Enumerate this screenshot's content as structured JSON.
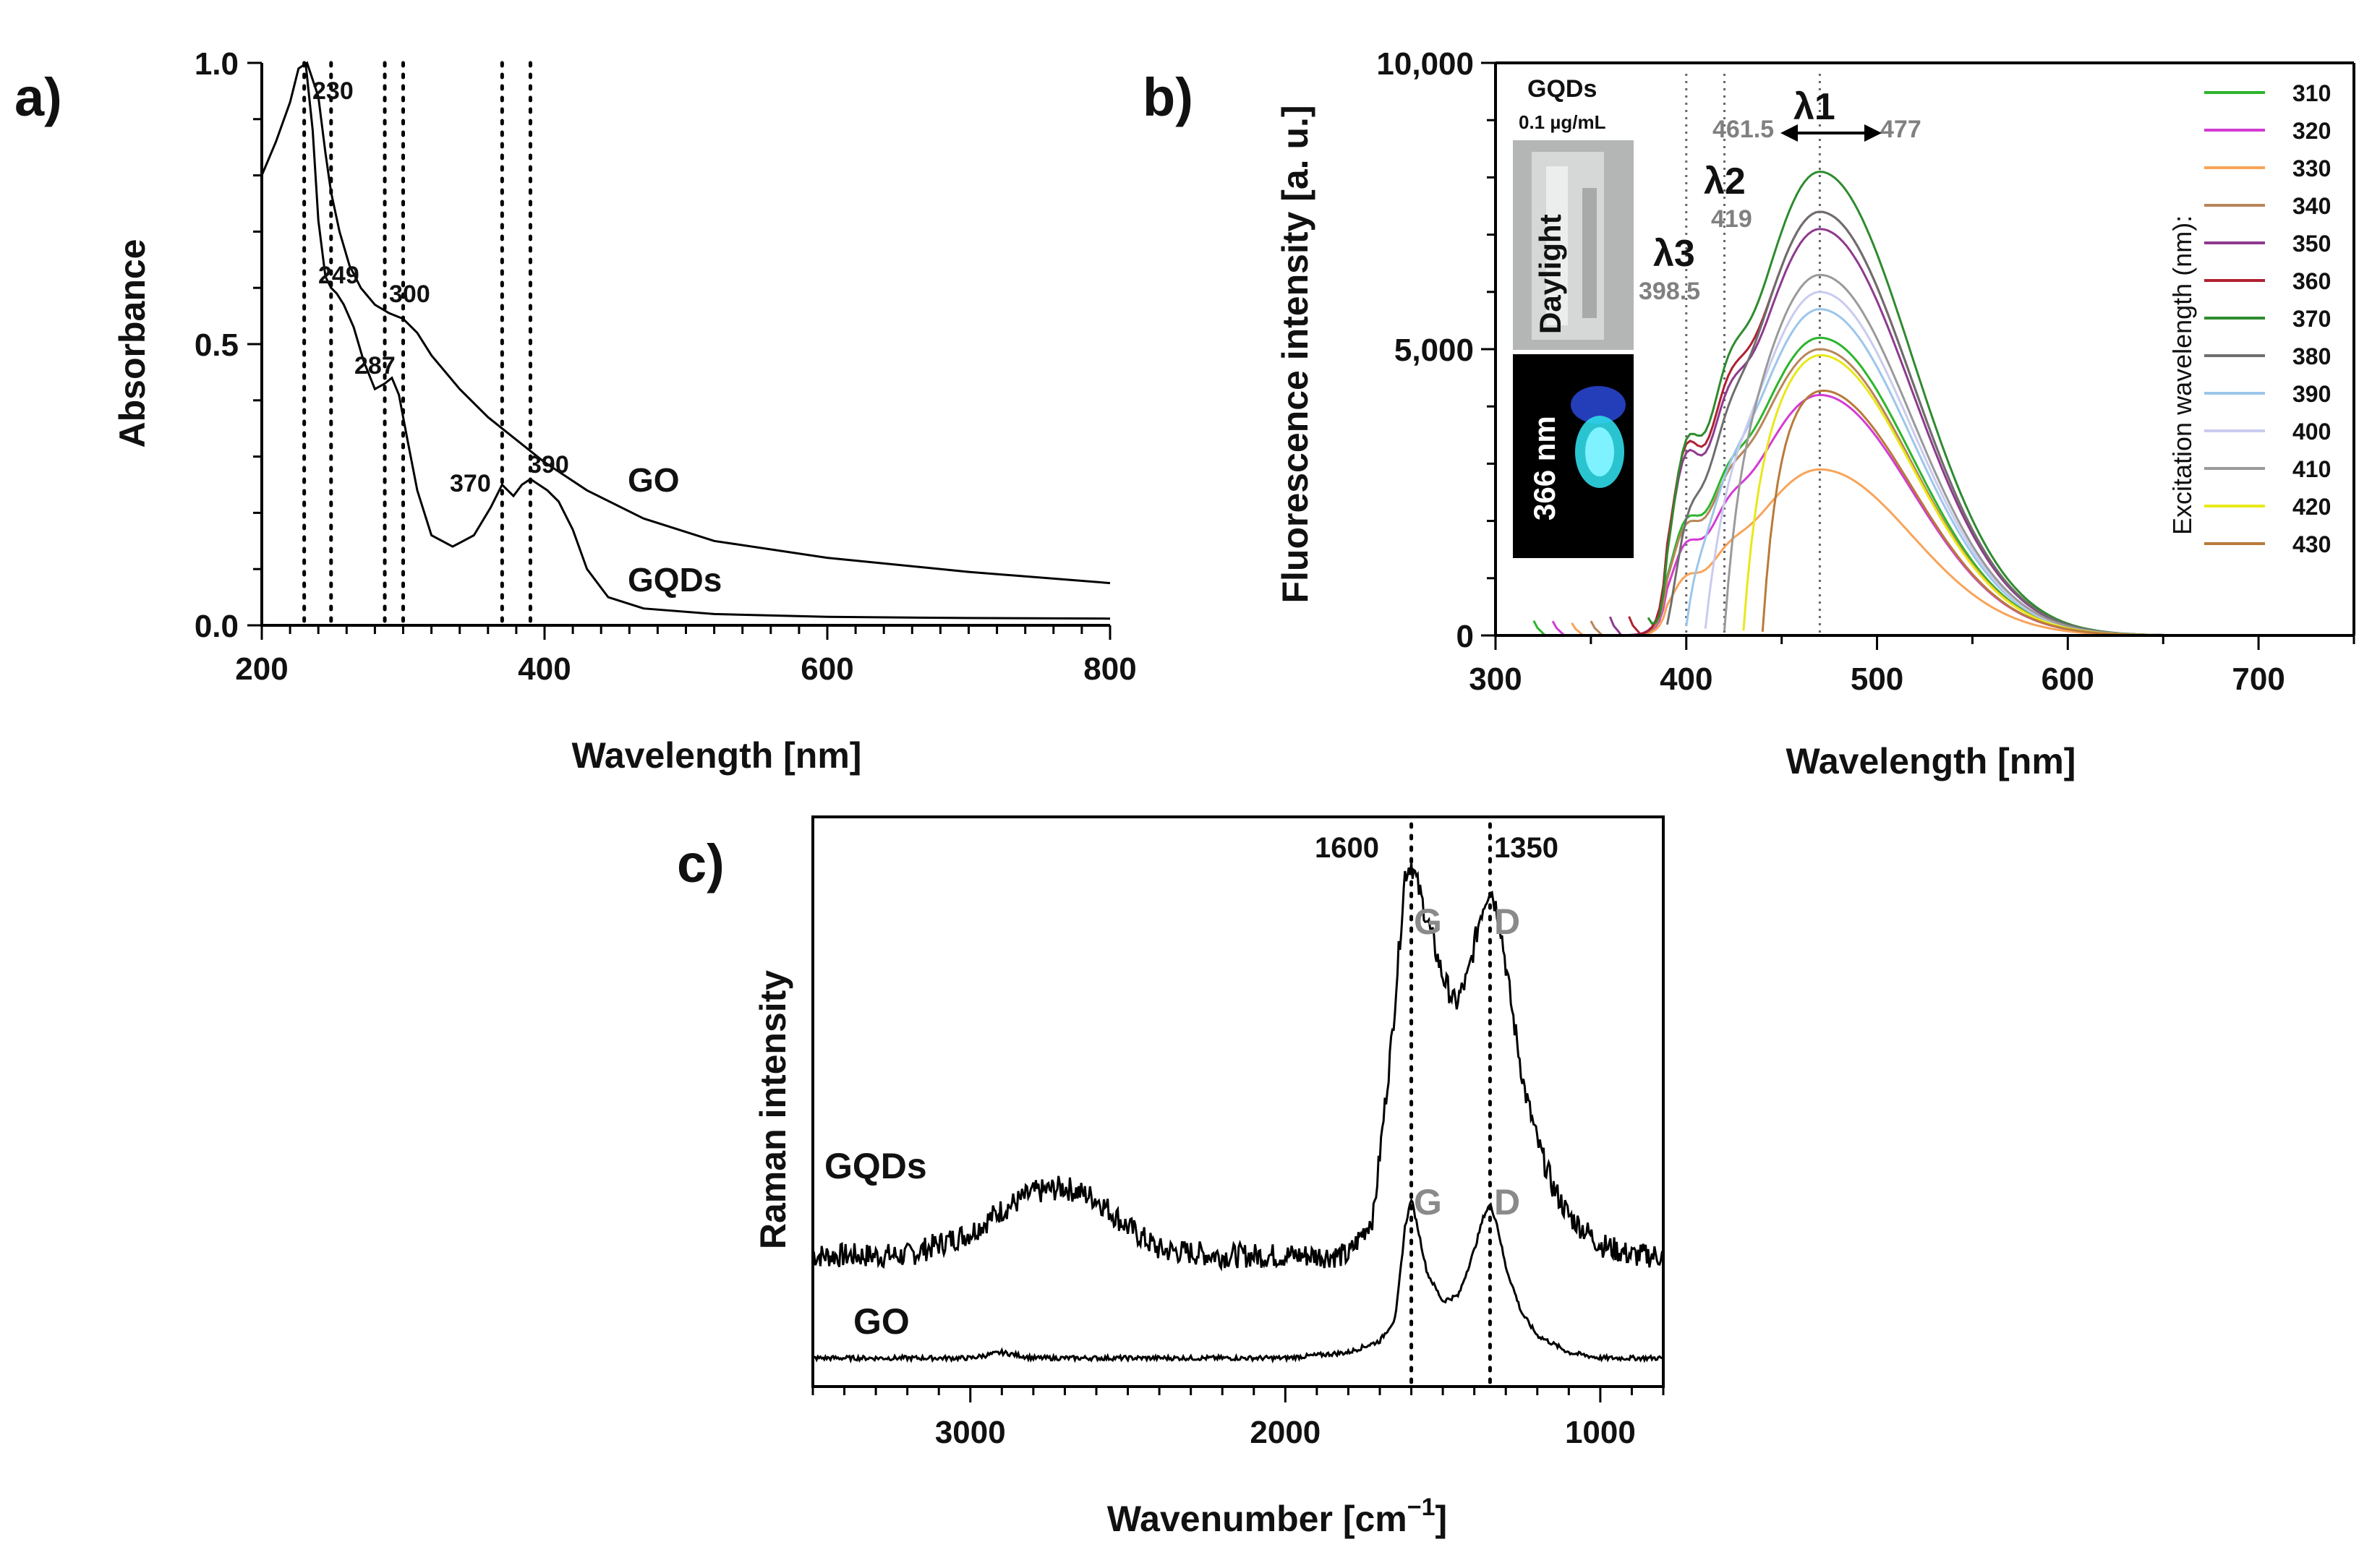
{
  "figure": {
    "background": "#ffffff"
  },
  "chart_data": [
    {
      "panel": "a)",
      "type": "line",
      "title": "",
      "xlabel": "Wavelength [nm]",
      "ylabel": "Absorbance",
      "xlim": [
        200,
        800
      ],
      "ylim": [
        0,
        1.0
      ],
      "xticks": [
        200,
        400,
        600,
        800
      ],
      "xtick_labels": [
        "200",
        "400",
        "600",
        "800"
      ],
      "yticks": [
        0,
        0.5,
        1.0
      ],
      "ytick_labels": [
        "0.0",
        "0.5",
        "1.0"
      ],
      "series": [
        {
          "name": "GO",
          "color": "#000000",
          "x": [
            200,
            210,
            220,
            226,
            232,
            240,
            245,
            249,
            255,
            262,
            270,
            280,
            290,
            300,
            310,
            320,
            340,
            360,
            380,
            400,
            430,
            470,
            520,
            600,
            700,
            800
          ],
          "y": [
            0.8,
            0.86,
            0.93,
            0.99,
            1.0,
            0.94,
            0.84,
            0.77,
            0.7,
            0.64,
            0.6,
            0.57,
            0.555,
            0.545,
            0.52,
            0.48,
            0.42,
            0.37,
            0.33,
            0.29,
            0.24,
            0.19,
            0.15,
            0.12,
            0.095,
            0.075
          ]
        },
        {
          "name": "GQDs",
          "color": "#000000",
          "x": [
            231,
            236,
            240,
            245,
            249,
            253,
            258,
            265,
            272,
            280,
            287,
            292,
            297,
            303,
            310,
            320,
            335,
            350,
            362,
            370,
            378,
            384,
            390,
            396,
            402,
            410,
            420,
            430,
            445,
            470,
            520,
            600,
            700,
            800
          ],
          "y": [
            1.0,
            0.88,
            0.72,
            0.62,
            0.6,
            0.59,
            0.57,
            0.53,
            0.47,
            0.42,
            0.43,
            0.44,
            0.41,
            0.33,
            0.24,
            0.16,
            0.14,
            0.16,
            0.21,
            0.25,
            0.23,
            0.25,
            0.26,
            0.25,
            0.24,
            0.22,
            0.17,
            0.1,
            0.05,
            0.03,
            0.02,
            0.015,
            0.013,
            0.012
          ]
        }
      ],
      "peak_labels": [
        "230",
        "249",
        "287",
        "300",
        "370",
        "390"
      ],
      "dotted_lines_x": [
        230,
        249,
        287,
        300,
        370,
        390
      ],
      "series_labels": [
        "GO",
        "GQDs"
      ]
    },
    {
      "panel": "b)",
      "type": "line",
      "xlabel": "Wavelength [nm]",
      "ylabel": "Fluorescence intensity [a. u.]",
      "xlim": [
        300,
        750
      ],
      "ylim": [
        0,
        10000
      ],
      "xticks": [
        300,
        400,
        500,
        600,
        700
      ],
      "xtick_labels": [
        "300",
        "400",
        "500",
        "600",
        "700"
      ],
      "yticks": [
        0,
        5000,
        10000
      ],
      "ytick_labels": [
        "0",
        "5,000",
        "10,000"
      ],
      "legend_title": "Excitation wavelength (nm):",
      "legend_position": "right",
      "series": [
        {
          "name": "310",
          "color": "#2db52d",
          "start": 320,
          "peak": 5200,
          "shoulder": 1900
        },
        {
          "name": "320",
          "color": "#d43bd4",
          "start": 330,
          "peak": 4200,
          "shoulder": 1500
        },
        {
          "name": "330",
          "color": "#f7a45a",
          "start": 340,
          "peak": 2900,
          "shoulder": 900
        },
        {
          "name": "340",
          "color": "#b8865a",
          "start": 350,
          "peak": 5000,
          "shoulder": 1800
        },
        {
          "name": "350",
          "color": "#8e3a8e",
          "start": 360,
          "peak": 7100,
          "shoulder": 3300
        },
        {
          "name": "360",
          "color": "#b02030",
          "start": 370,
          "peak": 7400,
          "shoulder": 3500
        },
        {
          "name": "370",
          "color": "#2e8b2e",
          "start": 380,
          "peak": 8100,
          "shoulder": 3600
        },
        {
          "name": "380",
          "color": "#6e6e6e",
          "start": 390,
          "peak": 7400,
          "shoulder": 2000
        },
        {
          "name": "390",
          "color": "#9cc6ea",
          "start": 400,
          "peak": 5700,
          "shoulder": 1300
        },
        {
          "name": "400",
          "color": "#c9cbef",
          "start": 410,
          "peak": 6000,
          "shoulder": 1000
        },
        {
          "name": "410",
          "color": "#9a9a9a",
          "start": 420,
          "peak": 6300,
          "shoulder": 700
        },
        {
          "name": "420",
          "color": "#e8e81a",
          "start": 430,
          "peak": 4900,
          "shoulder": 600
        },
        {
          "name": "430",
          "color": "#b87a3a",
          "start": 440,
          "peak": 4300,
          "shoulder": 400
        }
      ],
      "annotations": {
        "sample": "GQDs",
        "concentration": "0.1 µg/mL",
        "photo_daylight": "Daylight",
        "photo_uv": "366 nm",
        "lambda1": "λ1",
        "lambda2": "λ2",
        "lambda3": "λ3",
        "lambda1_low": "461.5",
        "lambda1_high": "477",
        "lambda2_value": "419",
        "lambda3_value": "398.5"
      },
      "dotted_lines_x": [
        400,
        420,
        470
      ]
    },
    {
      "panel": "c)",
      "type": "line",
      "xlabel": "Wavenumber [cm",
      "xlabel_sup": "−1",
      "xlabel_end": "]",
      "ylabel": "Raman intensity",
      "xlim": [
        3500,
        800
      ],
      "xticks": [
        3000,
        2000,
        1000
      ],
      "xtick_labels": [
        "3000",
        "2000",
        "1000"
      ],
      "series": [
        {
          "name": "GQDs",
          "x": [
            3500,
            3200,
            3000,
            2900,
            2800,
            2700,
            2600,
            2500,
            2400,
            2200,
            2000,
            1800,
            1720,
            1660,
            1620,
            1600,
            1570,
            1540,
            1500,
            1460,
            1420,
            1380,
            1350,
            1320,
            1280,
            1240,
            1200,
            1150,
            1100,
            1000,
            900,
            800
          ],
          "y": [
            0.23,
            0.23,
            0.27,
            0.31,
            0.34,
            0.35,
            0.33,
            0.28,
            0.24,
            0.23,
            0.23,
            0.23,
            0.3,
            0.62,
            0.9,
            0.92,
            0.86,
            0.8,
            0.72,
            0.67,
            0.72,
            0.83,
            0.88,
            0.82,
            0.66,
            0.52,
            0.43,
            0.35,
            0.3,
            0.25,
            0.23,
            0.23
          ]
        },
        {
          "name": "GO",
          "x": [
            3500,
            3000,
            2900,
            2800,
            2500,
            2000,
            1800,
            1700,
            1650,
            1620,
            1600,
            1580,
            1550,
            1500,
            1450,
            1400,
            1370,
            1350,
            1330,
            1300,
            1250,
            1200,
            1100,
            1000,
            900,
            800
          ],
          "y": [
            0.05,
            0.05,
            0.06,
            0.05,
            0.05,
            0.05,
            0.06,
            0.08,
            0.12,
            0.28,
            0.33,
            0.28,
            0.2,
            0.15,
            0.16,
            0.24,
            0.3,
            0.32,
            0.29,
            0.21,
            0.13,
            0.09,
            0.06,
            0.05,
            0.05,
            0.05
          ]
        }
      ],
      "band_labels": {
        "G": "G",
        "D": "D"
      },
      "peak_positions": {
        "G": "1600",
        "D": "1350"
      },
      "dotted_lines_x": [
        1600,
        1350
      ],
      "series_labels": [
        "GQDs",
        "GO"
      ]
    }
  ]
}
